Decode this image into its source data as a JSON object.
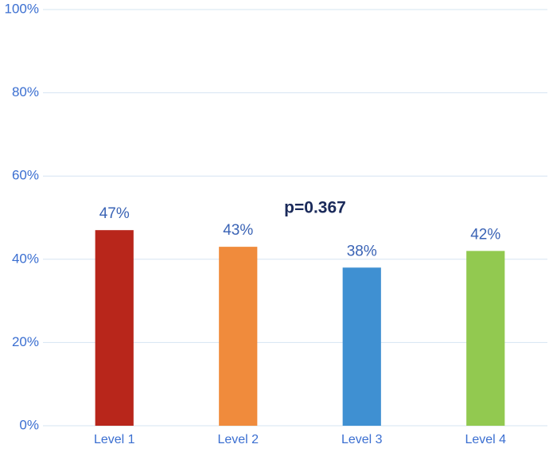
{
  "chart_data": {
    "type": "bar",
    "categories": [
      "Level 1",
      "Level 2",
      "Level 3",
      "Level 4"
    ],
    "values": [
      47,
      43,
      38,
      42
    ],
    "value_labels": [
      "47%",
      "43%",
      "38%",
      "42%"
    ],
    "colors": [
      "#b8261b",
      "#f08b3c",
      "#3f90d2",
      "#92c950"
    ],
    "annotation": "p=0.367",
    "ylim": [
      0,
      100
    ],
    "yticks": [
      {
        "value": 0,
        "label": "0%"
      },
      {
        "value": 20,
        "label": "20%"
      },
      {
        "value": 40,
        "label": "40%"
      },
      {
        "value": 60,
        "label": "60%"
      },
      {
        "value": 80,
        "label": "80%"
      },
      {
        "value": 100,
        "label": "100%"
      }
    ],
    "grid": true
  }
}
